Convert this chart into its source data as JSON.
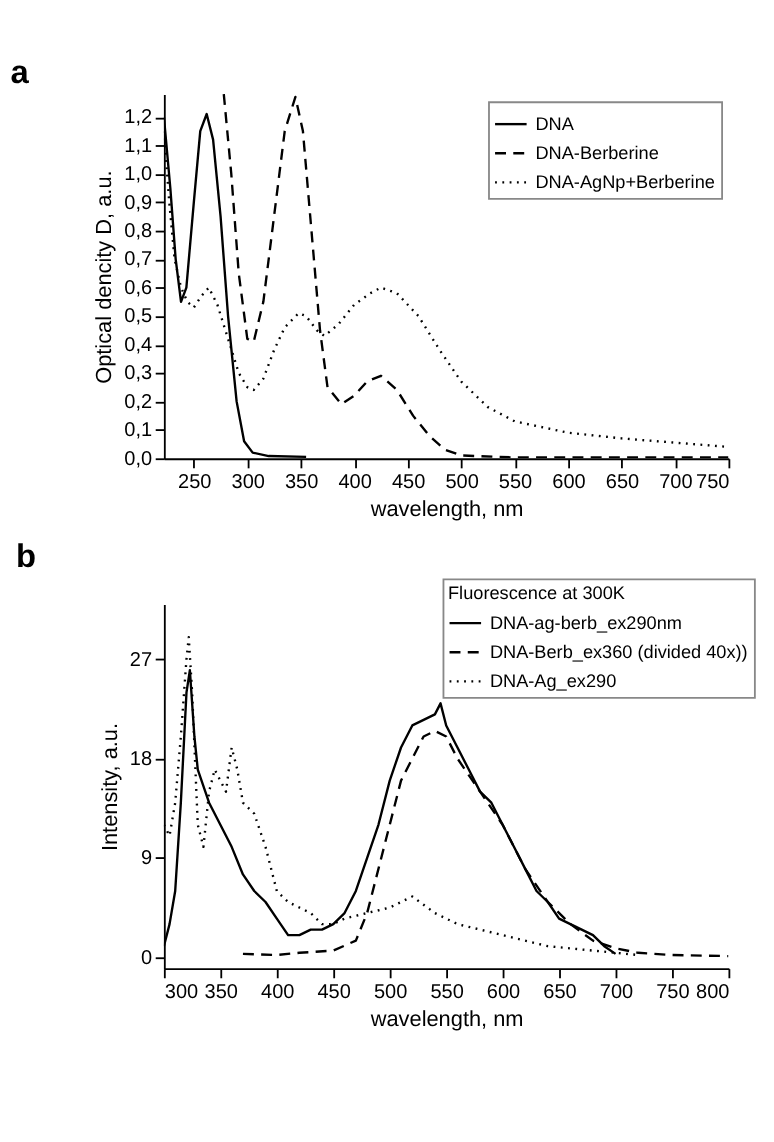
{
  "chart_data": [
    {
      "type": "line",
      "title": "a",
      "xlabel": "wavelength, nm",
      "ylabel": "Optical dencity D, a.u.",
      "xlim": [
        222,
        750
      ],
      "xticks": [
        250,
        300,
        350,
        400,
        450,
        500,
        550,
        600,
        650,
        700,
        750
      ],
      "ylim": [
        0,
        1.28
      ],
      "yticks": [
        {
          "value": 0,
          "label": "0,0"
        },
        {
          "value": 0.1,
          "label": "0,1"
        },
        {
          "value": 0.2,
          "label": "0,2"
        },
        {
          "value": 0.3,
          "label": "0,3"
        },
        {
          "value": 0.4,
          "label": "0,4"
        },
        {
          "value": 0.5,
          "label": "0,5"
        },
        {
          "value": 0.6,
          "label": "0,6"
        },
        {
          "value": 0.7,
          "label": "0,7"
        },
        {
          "value": 0.8,
          "label": "0,8"
        },
        {
          "value": 0.9,
          "label": "0,9"
        },
        {
          "value": 1.0,
          "label": "1,0"
        },
        {
          "value": 1.1,
          "label": "1,1"
        },
        {
          "value": 1.2,
          "label": "1,2"
        }
      ],
      "grid": false,
      "legend": "top right",
      "marker": "none",
      "series": [
        {
          "name": "DNA",
          "color": "#000000",
          "line_style": "solid",
          "x": [
            222,
            228,
            233,
            238,
            243,
            250,
            256,
            262,
            268,
            275,
            282,
            290,
            297,
            305,
            320,
            355
          ],
          "values": [
            1.2,
            0.95,
            0.7,
            0.55,
            0.6,
            0.9,
            1.15,
            1.21,
            1.12,
            0.85,
            0.5,
            0.2,
            0.06,
            0.02,
            0.008,
            0.005
          ]
        },
        {
          "name": "DNA-Berberine",
          "color": "#000000",
          "line_style": "dashed",
          "x": [
            278,
            285,
            292,
            300,
            306,
            315,
            325,
            335,
            345,
            352,
            360,
            368,
            375,
            388,
            400,
            412,
            425,
            440,
            455,
            470,
            485,
            500,
            550,
            750
          ],
          "values": [
            1.28,
            1.0,
            0.65,
            0.42,
            0.41,
            0.55,
            0.85,
            1.15,
            1.27,
            1.15,
            0.8,
            0.45,
            0.25,
            0.19,
            0.22,
            0.27,
            0.29,
            0.24,
            0.15,
            0.08,
            0.03,
            0.01,
            0.003,
            0.003
          ]
        },
        {
          "name": "DNA-AgNp+Berberine",
          "color": "#000000",
          "line_style": "dotted",
          "x": [
            222,
            227,
            232,
            238,
            244,
            250,
            257,
            264,
            272,
            282,
            292,
            300,
            306,
            315,
            325,
            335,
            348,
            355,
            365,
            372,
            385,
            400,
            415,
            425,
            440,
            460,
            480,
            500,
            525,
            550,
            600,
            650,
            700,
            750
          ],
          "values": [
            1.15,
            0.9,
            0.7,
            0.6,
            0.55,
            0.53,
            0.57,
            0.6,
            0.54,
            0.42,
            0.3,
            0.25,
            0.24,
            0.28,
            0.38,
            0.46,
            0.51,
            0.5,
            0.45,
            0.43,
            0.47,
            0.54,
            0.58,
            0.6,
            0.58,
            0.5,
            0.38,
            0.27,
            0.18,
            0.13,
            0.09,
            0.07,
            0.055,
            0.04
          ]
        }
      ]
    },
    {
      "type": "line",
      "title": "b",
      "xlabel": "wavelength, nm",
      "ylabel": "Intensity, a.u.",
      "legend_title": "Fluorescence at 300K",
      "xlim": [
        300,
        800
      ],
      "xticks": [
        300,
        350,
        400,
        450,
        500,
        550,
        600,
        650,
        700,
        750,
        800
      ],
      "ylim": [
        -1,
        32
      ],
      "yticks": [
        0,
        9,
        18,
        27
      ],
      "grid": false,
      "legend": "top right",
      "marker": "none",
      "series": [
        {
          "name": "DNA-ag-berb_ex290nm",
          "color": "#000000",
          "line_style": "solid",
          "x": [
            300,
            305,
            310,
            315,
            320,
            323,
            327,
            330,
            340,
            350,
            360,
            370,
            380,
            390,
            400,
            410,
            420,
            430,
            440,
            450,
            460,
            470,
            480,
            490,
            500,
            510,
            520,
            530,
            540,
            545,
            550,
            560,
            570,
            580,
            590,
            600,
            610,
            620,
            630,
            640,
            650,
            660,
            670,
            680,
            690,
            700
          ],
          "values": [
            1,
            3,
            6,
            14,
            24,
            26,
            20,
            17,
            14,
            12,
            10,
            7.5,
            6,
            5,
            3.5,
            2,
            2,
            2.5,
            2.5,
            3,
            4,
            6,
            9,
            12,
            16,
            19,
            21,
            21.5,
            22,
            23,
            21,
            19,
            17,
            15,
            14,
            12,
            10,
            8,
            6,
            5,
            3.5,
            3,
            2.5,
            2,
            1,
            0.3
          ]
        },
        {
          "name": "DNA-Berb_ex360 (divided 40x))",
          "color": "#000000",
          "line_style": "dashed",
          "x": [
            370,
            400,
            420,
            450,
            470,
            480,
            490,
            500,
            510,
            520,
            530,
            540,
            550,
            560,
            580,
            600,
            620,
            640,
            660,
            680,
            700,
            720,
            750,
            800
          ],
          "values": [
            0.3,
            0.2,
            0.4,
            0.6,
            1.5,
            4,
            8,
            12,
            16,
            18,
            20,
            20.5,
            20,
            18,
            15,
            12,
            8,
            5,
            3,
            1.5,
            0.8,
            0.4,
            0.2,
            0.1
          ]
        },
        {
          "name": "DNA-Ag_ex290",
          "color": "#000000",
          "line_style": "dotted",
          "x": [
            300,
            305,
            310,
            315,
            320,
            322,
            325,
            330,
            335,
            340,
            345,
            350,
            355,
            360,
            365,
            370,
            380,
            390,
            400,
            410,
            420,
            430,
            440,
            450,
            460,
            480,
            500,
            520,
            540,
            560,
            580,
            600,
            620,
            640,
            660,
            680,
            700,
            720
          ],
          "values": [
            12,
            11,
            14,
            20,
            27,
            29,
            24,
            12,
            10,
            15,
            17,
            16,
            15,
            19,
            17,
            14,
            13,
            10,
            6,
            5,
            4.5,
            4,
            3,
            3,
            3.5,
            4,
            4.5,
            5.5,
            4,
            3,
            2.5,
            2,
            1.5,
            1,
            0.8,
            0.6,
            0.4,
            0.2
          ]
        }
      ]
    }
  ]
}
